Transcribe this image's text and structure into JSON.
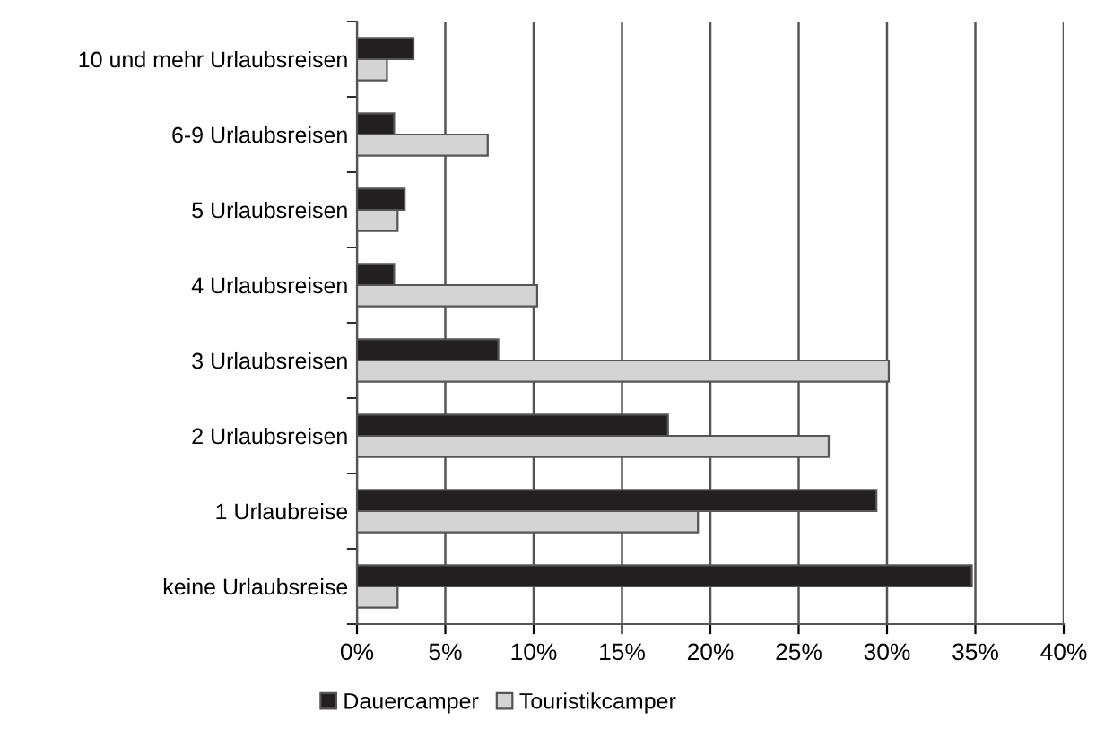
{
  "chart_data": {
    "type": "bar",
    "orientation": "horizontal",
    "categories": [
      "10 und mehr Urlaubsreisen",
      "6-9 Urlaubsreisen",
      "5 Urlaubsreisen",
      "4 Urlaubsreisen",
      "3 Urlaubsreisen",
      "2 Urlaubsreisen",
      "1 Urlaubreise",
      "keine Urlaubsreise"
    ],
    "series": [
      {
        "name": "Dauercamper",
        "color": "#231f20",
        "values": [
          3.2,
          2.1,
          2.7,
          2.1,
          8.0,
          17.6,
          29.4,
          34.8
        ]
      },
      {
        "name": "Touristikcamper",
        "color": "#d4d4d4",
        "values": [
          1.7,
          7.4,
          2.3,
          10.2,
          30.1,
          26.7,
          19.3,
          2.3
        ]
      }
    ],
    "xlim": [
      0,
      40
    ],
    "xticks": [
      {
        "value": 0,
        "label": "0%"
      },
      {
        "value": 5,
        "label": "5%"
      },
      {
        "value": 10,
        "label": "10%"
      },
      {
        "value": 15,
        "label": "15%"
      },
      {
        "value": 20,
        "label": "20%"
      },
      {
        "value": 25,
        "label": "25%"
      },
      {
        "value": 30,
        "label": "30%"
      },
      {
        "value": 35,
        "label": "35%"
      },
      {
        "value": 40,
        "label": "40%"
      }
    ],
    "grid": "x",
    "legend": "bottom"
  }
}
